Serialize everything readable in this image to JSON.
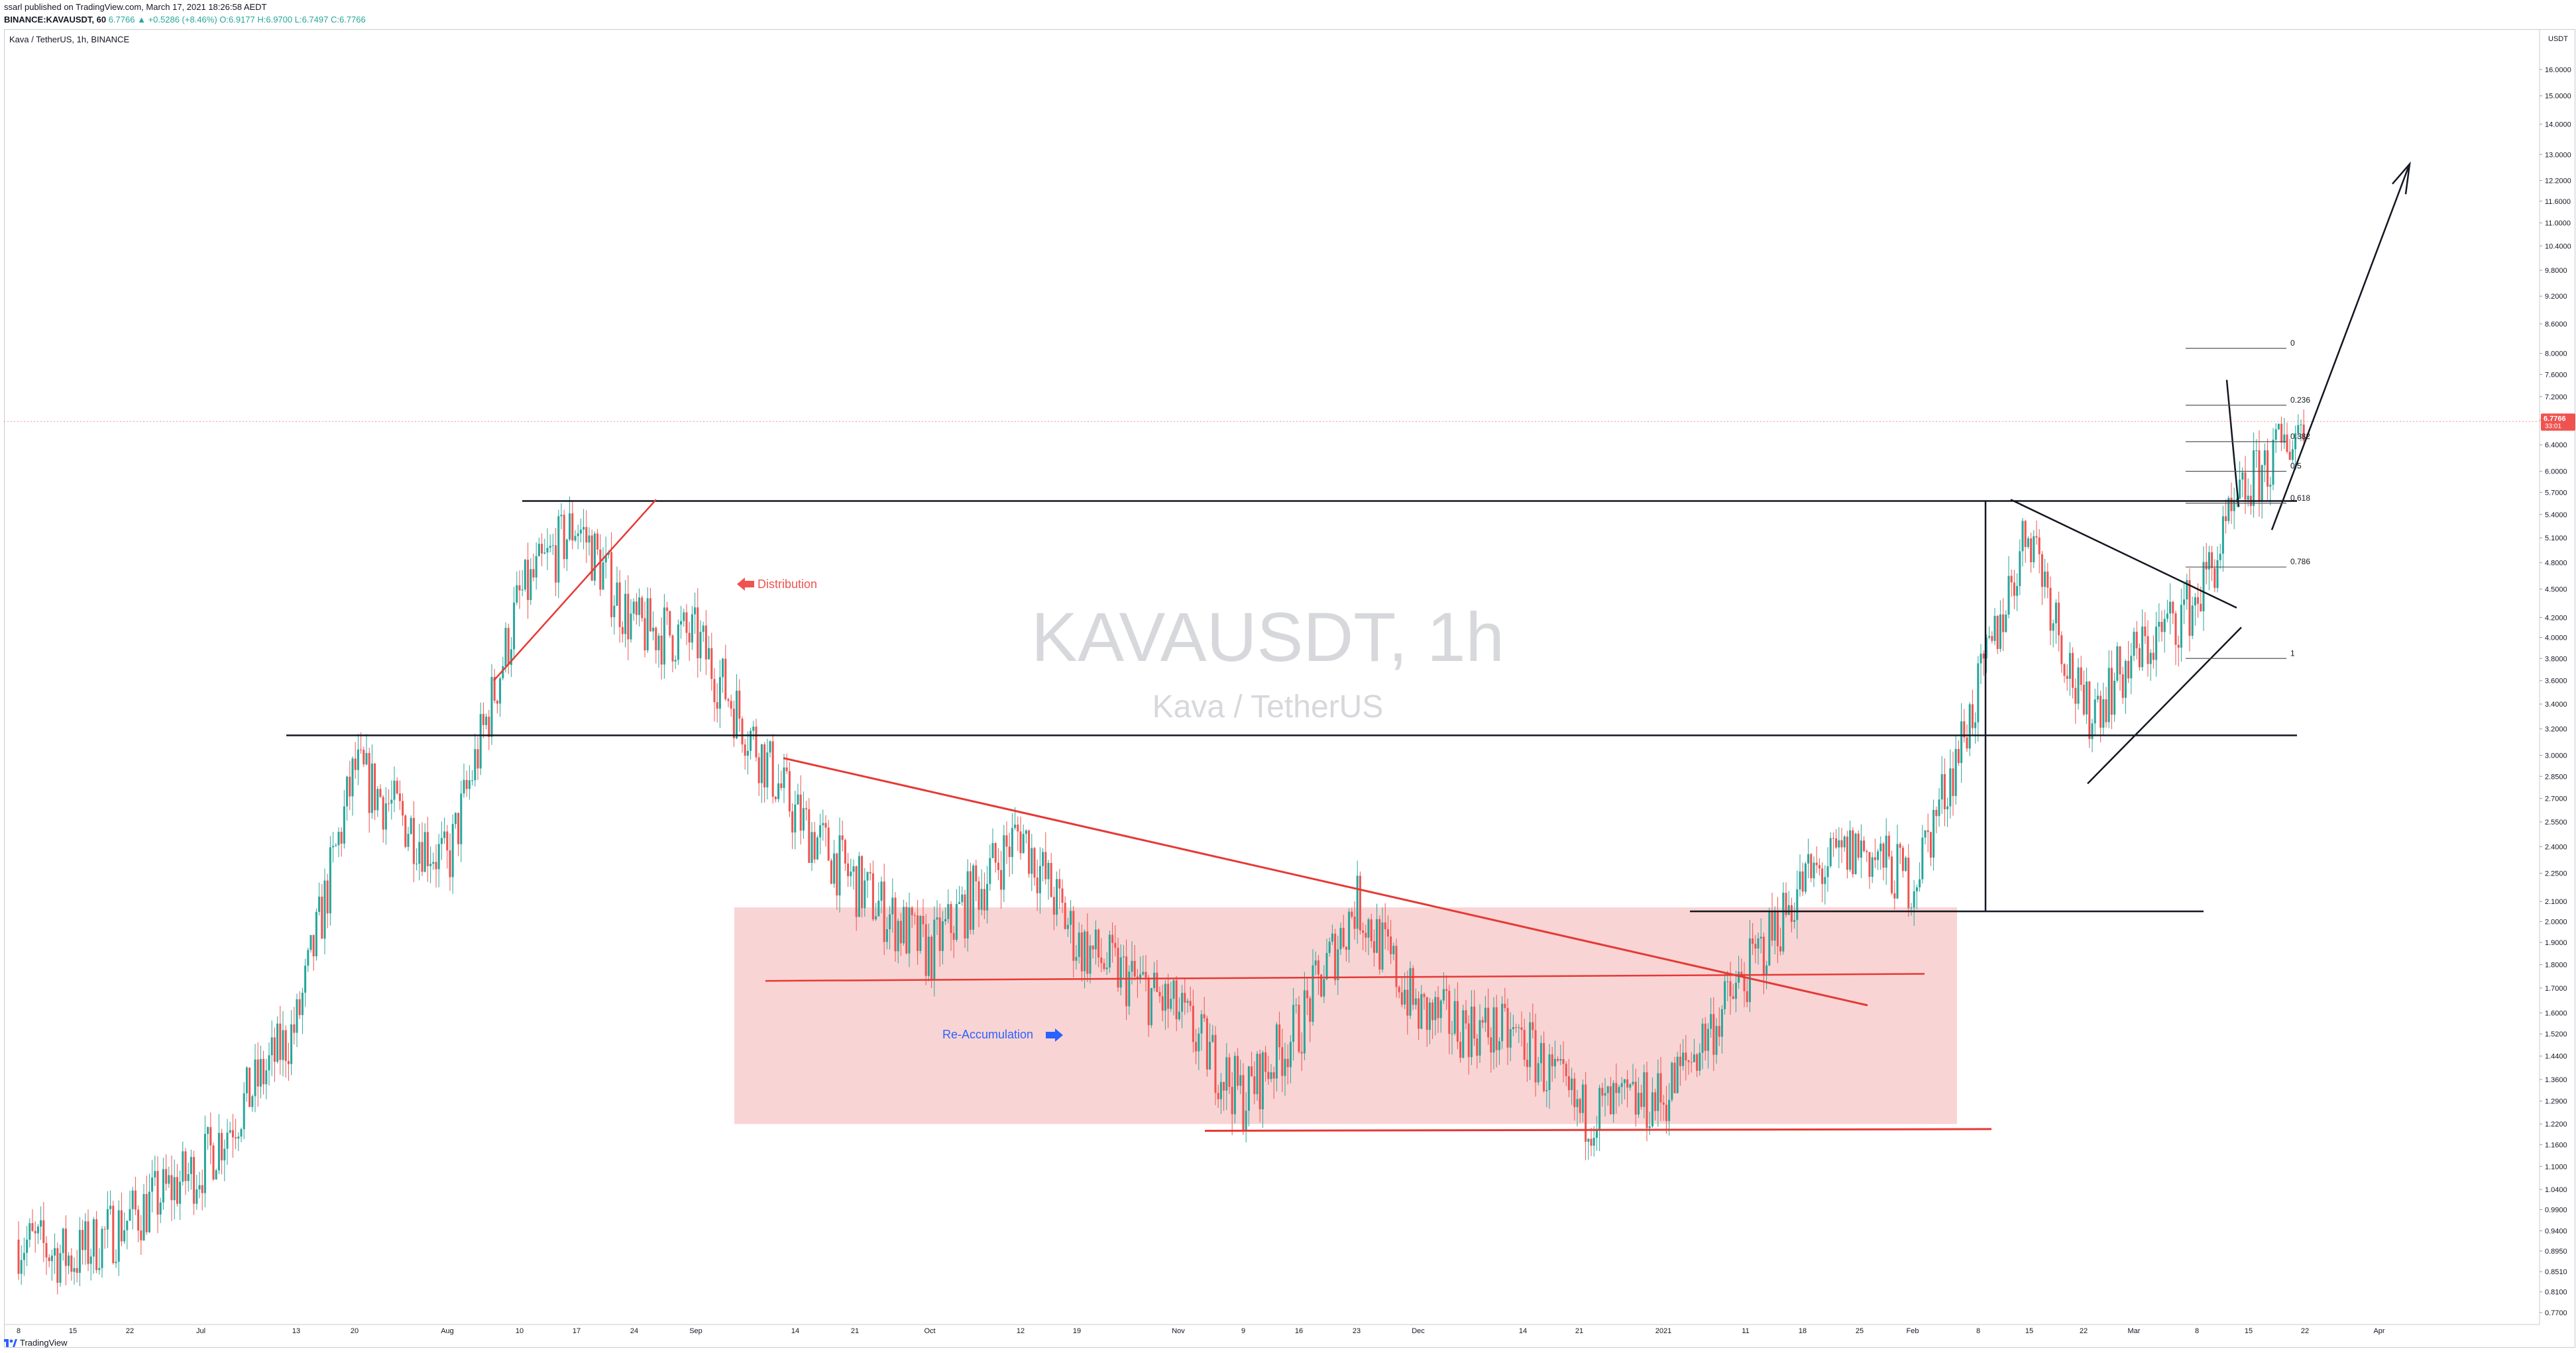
{
  "header": {
    "published": "ssarl published on TradingView.com, March 17, 2021 18:26:58 AEDT",
    "symbol": "BINANCE:KAVAUSDT, 60",
    "ohlc_text": "6.7766 ▲ +0.5286 (+8.46%) O:6.9177 H:6.9700 L:6.7497 C:6.7766"
  },
  "chart_title": "Kava / TetherUS, 1h, BINANCE",
  "watermark": {
    "symbol": "KAVAUSDT, 1h",
    "name": "Kava / TetherUS"
  },
  "footer": {
    "brand": "TradingView"
  },
  "colors": {
    "up": "#26a69a",
    "down": "#ef5350",
    "red_line": "#e53935",
    "zone_fill": "#f8cdcd",
    "price_label": "#ef5350",
    "annotation_blue": "#2962ff"
  },
  "chart_data": {
    "type": "candlestick",
    "y_axis": {
      "unit": "USDT",
      "scale": "log",
      "ticks": [
        "16.0000",
        "15.0000",
        "14.0000",
        "13.0000",
        "12.2000",
        "11.6000",
        "11.0000",
        "10.4000",
        "9.8000",
        "9.2000",
        "8.6000",
        "8.0000",
        "7.6000",
        "7.2000",
        "6.8000",
        "6.4000",
        "6.0000",
        "5.7000",
        "5.4000",
        "5.1000",
        "4.8000",
        "4.5000",
        "4.2000",
        "4.0000",
        "3.8000",
        "3.6000",
        "3.4000",
        "3.2000",
        "3.0000",
        "2.8500",
        "2.7000",
        "2.5500",
        "2.4000",
        "2.2500",
        "2.1000",
        "2.0000",
        "1.9000",
        "1.8000",
        "1.7000",
        "1.6000",
        "1.5200",
        "1.4400",
        "1.3600",
        "1.2900",
        "1.2200",
        "1.1600",
        "1.1000",
        "1.0400",
        "0.9900",
        "0.9400",
        "0.8950",
        "0.8510",
        "0.8100",
        "0.7700"
      ],
      "range": [
        0.77,
        16.6
      ]
    },
    "x_axis": {
      "ticks": [
        "8",
        "15",
        "22",
        "Jul",
        "13",
        "20",
        "Aug",
        "10",
        "17",
        "24",
        "Sep",
        "14",
        "21",
        "Oct",
        "12",
        "19",
        "Nov",
        "9",
        "16",
        "23",
        "Dec",
        "14",
        "21",
        "2021",
        "11",
        "18",
        "25",
        "Feb",
        "8",
        "15",
        "22",
        "Mar",
        "8",
        "15",
        "22",
        "Apr"
      ]
    },
    "last_price": {
      "value": "6.7766",
      "countdown": "33:01"
    },
    "price_path": [
      [
        "8",
        0.92
      ],
      [
        "15",
        0.88
      ],
      [
        "22",
        0.97
      ],
      [
        "Jul",
        1.1
      ],
      [
        "13",
        1.55
      ],
      [
        "20",
        2.9
      ],
      [
        "Aug",
        2.3
      ],
      [
        "10",
        4.4
      ],
      [
        "17",
        5.3
      ],
      [
        "24",
        4.1
      ],
      [
        "Sep",
        4.0
      ],
      [
        "14",
        2.6
      ],
      [
        "21",
        2.2
      ],
      [
        "Oct",
        1.85
      ],
      [
        "12",
        2.5
      ],
      [
        "19",
        1.9
      ],
      [
        "Nov",
        1.6
      ],
      [
        "9",
        1.3
      ],
      [
        "16",
        1.55
      ],
      [
        "23",
        2.1
      ],
      [
        "Dec",
        1.6
      ],
      [
        "14",
        1.5
      ],
      [
        "21",
        1.25
      ],
      [
        "2021",
        1.3
      ],
      [
        "11",
        1.75
      ],
      [
        "18",
        2.2
      ],
      [
        "25",
        2.4
      ],
      [
        "Feb",
        2.2
      ],
      [
        "8",
        3.5
      ],
      [
        "15",
        5.3
      ],
      [
        "22",
        3.3
      ],
      [
        "Mar",
        3.8
      ],
      [
        "8",
        4.4
      ],
      [
        "15",
        5.8
      ],
      [
        "22",
        6.78
      ]
    ],
    "fibonacci": [
      {
        "level": "0",
        "price": 8.1
      },
      {
        "level": "0.236",
        "price": 7.05
      },
      {
        "level": "0.382",
        "price": 6.45
      },
      {
        "level": "0.5",
        "price": 6.0
      },
      {
        "level": "0.618",
        "price": 5.55
      },
      {
        "level": "0.786",
        "price": 4.75
      },
      {
        "level": "1",
        "price": 3.8
      }
    ],
    "horizontal_levels": [
      5.58,
      3.15,
      2.05
    ],
    "zone": {
      "from_date": "Sep 7",
      "to_date": "Feb 8",
      "low": 1.22,
      "high": 2.07
    },
    "annotations": [
      {
        "text": "Distribution",
        "color": "#ef5350",
        "arrow": "left"
      },
      {
        "text": "Re-Accumulation",
        "color": "#2962ff",
        "arrow": "right"
      }
    ]
  }
}
